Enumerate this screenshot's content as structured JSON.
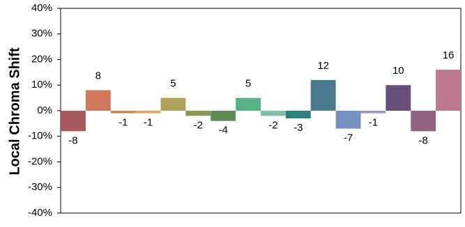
{
  "chart_data": {
    "type": "bar",
    "y_label": "Local Chroma Shift",
    "categories": [
      null,
      null,
      null,
      null,
      null,
      null,
      null,
      null,
      null,
      null,
      null,
      null,
      null,
      null,
      null,
      null
    ],
    "values": [
      -8,
      8,
      -1,
      -1,
      5,
      -2,
      -4,
      5,
      -2,
      -3,
      12,
      -7,
      -1,
      10,
      -8,
      16
    ],
    "colors": [
      "#a65a5a",
      "#d07858",
      "#c8884a",
      "#dca860",
      "#b0a058",
      "#8c9858",
      "#5e8c58",
      "#58b088",
      "#80c0a8",
      "#2e8080",
      "#4a7890",
      "#7890c0",
      "#a098c0",
      "#6a5078",
      "#906080",
      "#c07890"
    ],
    "ylim": [
      -40,
      40
    ],
    "yticks": [
      {
        "value": -40,
        "label": "-40%"
      },
      {
        "value": -30,
        "label": "-30%"
      },
      {
        "value": -20,
        "label": "-20%"
      },
      {
        "value": -10,
        "label": "-10%"
      },
      {
        "value": 0,
        "label": "0%"
      },
      {
        "value": 10,
        "label": "10%"
      },
      {
        "value": 20,
        "label": "20%"
      },
      {
        "value": 30,
        "label": "30%"
      },
      {
        "value": 40,
        "label": "40%"
      }
    ]
  }
}
